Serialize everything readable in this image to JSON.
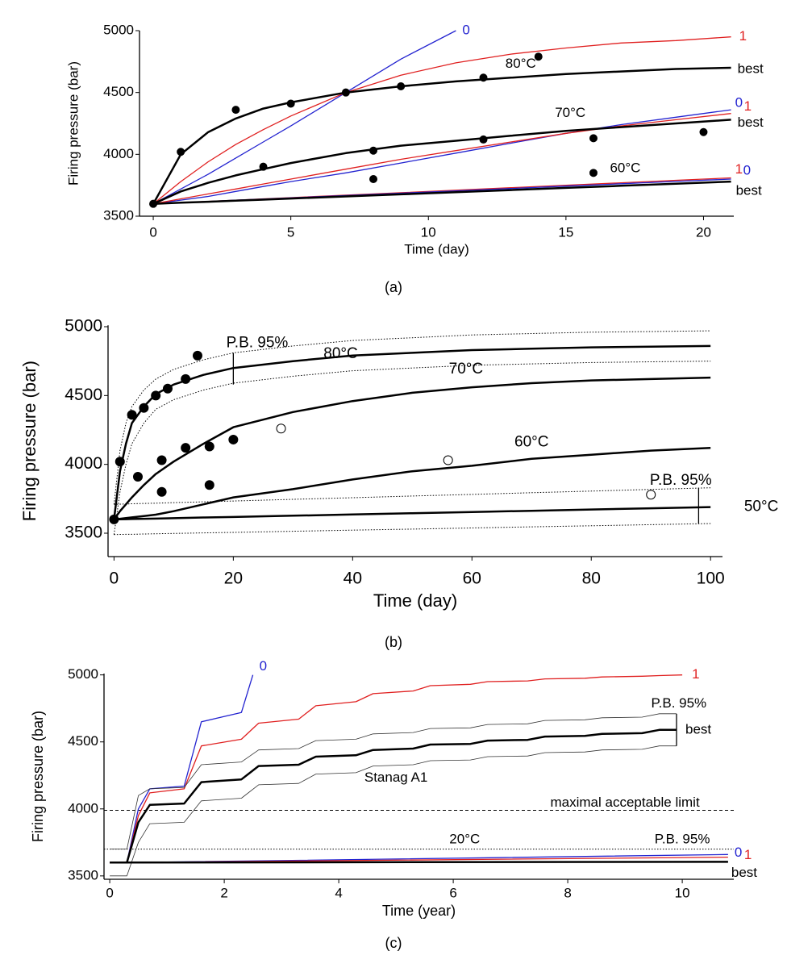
{
  "chart_data": [
    {
      "type": "line",
      "title": "(a)",
      "xlabel": "Time (day)",
      "ylabel": "Firing pressure (bar)",
      "xlim": [
        -0.5,
        21.1
      ],
      "ylim": [
        3500,
        5000
      ],
      "xticks": [
        0,
        5,
        10,
        15,
        20
      ],
      "yticks": [
        3500,
        4000,
        4500,
        5000
      ],
      "x": [
        0,
        1,
        2,
        3,
        4,
        5,
        7,
        9,
        11,
        13,
        15,
        17,
        19,
        21
      ],
      "series": [
        {
          "name": "0",
          "color": "#2323d0",
          "values": [
            3600,
            3720,
            3840,
            3970,
            4100,
            4230,
            4500,
            4770,
            5000,
            null,
            null,
            null,
            null,
            null
          ]
        },
        {
          "name": "1",
          "color": "#e02020",
          "values": [
            3600,
            3780,
            3940,
            4080,
            4200,
            4310,
            4500,
            4640,
            4740,
            4810,
            4860,
            4900,
            4920,
            4950
          ]
        },
        {
          "name": "best",
          "color": "#000000",
          "width": 2.5,
          "values": [
            3600,
            4000,
            4180,
            4290,
            4370,
            4420,
            4500,
            4550,
            4590,
            4620,
            4650,
            4670,
            4690,
            4700
          ]
        },
        {
          "name": "0",
          "color": "#2323d0",
          "values": [
            3600,
            3630,
            3660,
            3700,
            3740,
            3780,
            3850,
            3930,
            4010,
            4090,
            4170,
            4240,
            4300,
            4360
          ]
        },
        {
          "name": "1",
          "color": "#e02020",
          "values": [
            3600,
            3640,
            3680,
            3720,
            3760,
            3800,
            3880,
            3960,
            4030,
            4100,
            4170,
            4230,
            4280,
            4330
          ]
        },
        {
          "name": "best",
          "color": "#000000",
          "width": 2.5,
          "values": [
            3600,
            3700,
            3770,
            3830,
            3880,
            3930,
            4010,
            4070,
            4110,
            4150,
            4190,
            4220,
            4250,
            4280
          ]
        },
        {
          "name": "1",
          "color": "#e02020",
          "values": [
            3600,
            3610,
            3620,
            3630,
            3640,
            3650,
            3670,
            3690,
            3710,
            3730,
            3750,
            3770,
            3790,
            3810
          ]
        },
        {
          "name": "0",
          "color": "#2323d0",
          "values": [
            3600,
            3610,
            3619,
            3629,
            3638,
            3648,
            3667,
            3686,
            3705,
            3724,
            3743,
            3762,
            3781,
            3800
          ]
        },
        {
          "name": "best",
          "color": "#000000",
          "width": 2.5,
          "values": [
            3600,
            3609,
            3617,
            3626,
            3634,
            3643,
            3660,
            3677,
            3694,
            3711,
            3729,
            3746,
            3763,
            3780
          ]
        }
      ],
      "scatter": [
        {
          "marker": "filled",
          "x": [
            0,
            1,
            3,
            5,
            7,
            9,
            12,
            14,
            4,
            8,
            12,
            16,
            20,
            8,
            16
          ],
          "values": [
            3600,
            4020,
            4360,
            4410,
            4500,
            4550,
            4620,
            4790,
            3900,
            4030,
            4120,
            4130,
            4180,
            3800,
            3850
          ]
        }
      ],
      "annotations": [
        "80°C",
        "70°C",
        "60°C"
      ]
    },
    {
      "type": "line",
      "title": "(b)",
      "xlabel": "Time (day)",
      "ylabel": "Firing pressure (bar)",
      "xlim": [
        -1,
        102
      ],
      "ylim": [
        3330,
        5010
      ],
      "xticks": [
        0,
        20,
        40,
        60,
        80,
        100
      ],
      "yticks": [
        3500,
        4000,
        4500,
        5000
      ],
      "x": [
        0,
        1,
        2,
        3,
        5,
        7,
        10,
        15,
        20,
        30,
        40,
        50,
        60,
        70,
        80,
        90,
        100
      ],
      "series": [
        {
          "color": "#000000",
          "style": "dotted",
          "values": [
            3710,
            4100,
            4300,
            4420,
            4540,
            4620,
            4690,
            4760,
            4810,
            4860,
            4900,
            4920,
            4940,
            4950,
            4960,
            4965,
            4970
          ]
        },
        {
          "color": "#000000",
          "width": 2.5,
          "values": [
            3600,
            3950,
            4150,
            4300,
            4420,
            4510,
            4580,
            4650,
            4700,
            4750,
            4790,
            4810,
            4830,
            4840,
            4850,
            4855,
            4860
          ]
        },
        {
          "color": "#000000",
          "style": "dotted",
          "values": [
            3490,
            3800,
            4000,
            4150,
            4300,
            4400,
            4470,
            4540,
            4590,
            4640,
            4680,
            4700,
            4720,
            4730,
            4740,
            4745,
            4750
          ]
        },
        {
          "color": "#000000",
          "width": 2.5,
          "values": [
            3600,
            3660,
            3710,
            3760,
            3850,
            3930,
            4020,
            4150,
            4270,
            4380,
            4460,
            4520,
            4560,
            4590,
            4610,
            4620,
            4630
          ]
        },
        {
          "color": "#000000",
          "width": 2.5,
          "values": [
            3600,
            3605,
            3610,
            3615,
            3625,
            3635,
            3660,
            3710,
            3760,
            3820,
            3890,
            3950,
            3990,
            4040,
            4070,
            4100,
            4120
          ]
        },
        {
          "color": "#000000",
          "style": "dotted",
          "values": [
            3710,
            3711,
            3712,
            3714,
            3716,
            3718,
            3722,
            3728,
            3734,
            3746,
            3758,
            3770,
            3782,
            3794,
            3806,
            3818,
            3830
          ]
        },
        {
          "color": "#000000",
          "width": 2.5,
          "values": [
            3600,
            3601,
            3602,
            3603,
            3605,
            3606,
            3609,
            3614,
            3618,
            3627,
            3636,
            3645,
            3654,
            3663,
            3672,
            3681,
            3690
          ]
        },
        {
          "color": "#000000",
          "style": "dotted",
          "values": [
            3490,
            3491,
            3492,
            3492,
            3494,
            3496,
            3498,
            3502,
            3506,
            3514,
            3522,
            3530,
            3538,
            3546,
            3554,
            3562,
            3570
          ]
        }
      ],
      "scatter": [
        {
          "marker": "filled",
          "x": [
            0,
            1,
            3,
            5,
            7,
            9,
            12,
            14,
            4,
            8,
            12,
            16,
            20,
            8,
            16
          ],
          "values": [
            3600,
            4020,
            4360,
            4410,
            4500,
            4550,
            4620,
            4790,
            3910,
            4030,
            4120,
            4130,
            4180,
            3800,
            3850
          ]
        },
        {
          "marker": "open",
          "x": [
            28,
            56,
            90
          ],
          "values": [
            4260,
            4030,
            3780
          ]
        }
      ],
      "brackets": [
        {
          "x": 20,
          "low": 4580,
          "high": 4810
        },
        {
          "x": 98,
          "low": 3570,
          "high": 3830
        }
      ],
      "annotations": [
        "P.B. 95%",
        "80°C",
        "70°C",
        "60°C",
        "P.B. 95%",
        "50°C"
      ]
    },
    {
      "type": "line",
      "title": "(c)",
      "xlabel": "Time (year)",
      "ylabel": "Firing pressure (bar)",
      "xlim": [
        -0.1,
        10.9
      ],
      "ylim": [
        3475,
        5010
      ],
      "xticks": [
        0,
        2,
        4,
        6,
        8,
        10
      ],
      "yticks": [
        3500,
        4000,
        4500,
        5000
      ],
      "x": [
        0,
        0.3,
        0.5,
        0.7,
        1.3,
        1.6,
        2.3,
        2.6,
        3.3,
        3.6,
        4.3,
        4.6,
        5.3,
        5.6,
        6.3,
        6.6,
        7.3,
        7.6,
        8.3,
        8.6,
        9.3,
        9.6,
        9.9
      ],
      "series": [
        {
          "name": "0",
          "color": "#2323d0",
          "x": [
            0,
            0.3,
            0.5,
            0.7,
            1.3,
            1.6,
            2.3,
            2.5
          ],
          "values": [
            3600,
            3600,
            4000,
            4150,
            4170,
            4650,
            4720,
            5000
          ]
        },
        {
          "name": "1",
          "color": "#e02020",
          "x": [
            0,
            0.3,
            0.5,
            0.7,
            1.3,
            1.6,
            2.3,
            2.6,
            3.3,
            3.6,
            4.3,
            4.6,
            5.3,
            5.6,
            6.3,
            6.6,
            7.3,
            7.6,
            8.3,
            8.6,
            9.3,
            9.6,
            10.0
          ],
          "values": [
            3600,
            3600,
            3950,
            4120,
            4150,
            4470,
            4520,
            4640,
            4670,
            4770,
            4800,
            4860,
            4880,
            4920,
            4930,
            4950,
            4955,
            4970,
            4975,
            4985,
            4990,
            4995,
            5000
          ]
        },
        {
          "color": "#333333",
          "style": "thin",
          "values": [
            3700,
            3700,
            4100,
            4150,
            4160,
            4330,
            4350,
            4440,
            4450,
            4510,
            4520,
            4560,
            4570,
            4600,
            4605,
            4630,
            4635,
            4660,
            4665,
            4680,
            4685,
            4710,
            4710
          ]
        },
        {
          "name": "best",
          "color": "#000000",
          "width": 2.5,
          "values": [
            3600,
            3600,
            3900,
            4030,
            4040,
            4200,
            4220,
            4320,
            4330,
            4390,
            4400,
            4440,
            4450,
            4480,
            4485,
            4510,
            4515,
            4540,
            4545,
            4560,
            4565,
            4590,
            4590
          ]
        },
        {
          "color": "#333333",
          "style": "thin",
          "values": [
            3500,
            3500,
            3750,
            3890,
            3900,
            4060,
            4080,
            4180,
            4190,
            4260,
            4270,
            4320,
            4330,
            4360,
            4365,
            4390,
            4395,
            4420,
            4425,
            4440,
            4445,
            4470,
            4470
          ]
        },
        {
          "name": "0",
          "color": "#2323d0",
          "x": [
            0,
            0.5,
            10.8
          ],
          "values": [
            3600,
            3600,
            3660
          ]
        },
        {
          "name": "1",
          "color": "#e02020",
          "x": [
            0,
            0.5,
            10.8
          ],
          "values": [
            3600,
            3600,
            3640
          ]
        },
        {
          "name": "best",
          "color": "#000000",
          "width": 2.5,
          "x": [
            0,
            10.8
          ],
          "values": [
            3600,
            3605
          ]
        }
      ],
      "hlines": [
        {
          "y": 3990,
          "style": "dashed"
        },
        {
          "y": 3700,
          "style": "dotted"
        }
      ],
      "brackets": [
        {
          "x": 9.9,
          "low": 4470,
          "high": 4710
        }
      ],
      "annotations": [
        "P.B. 95%",
        "Stanag A1",
        "maximal acceptable limit",
        "20°C",
        "P.B. 95%"
      ]
    }
  ]
}
